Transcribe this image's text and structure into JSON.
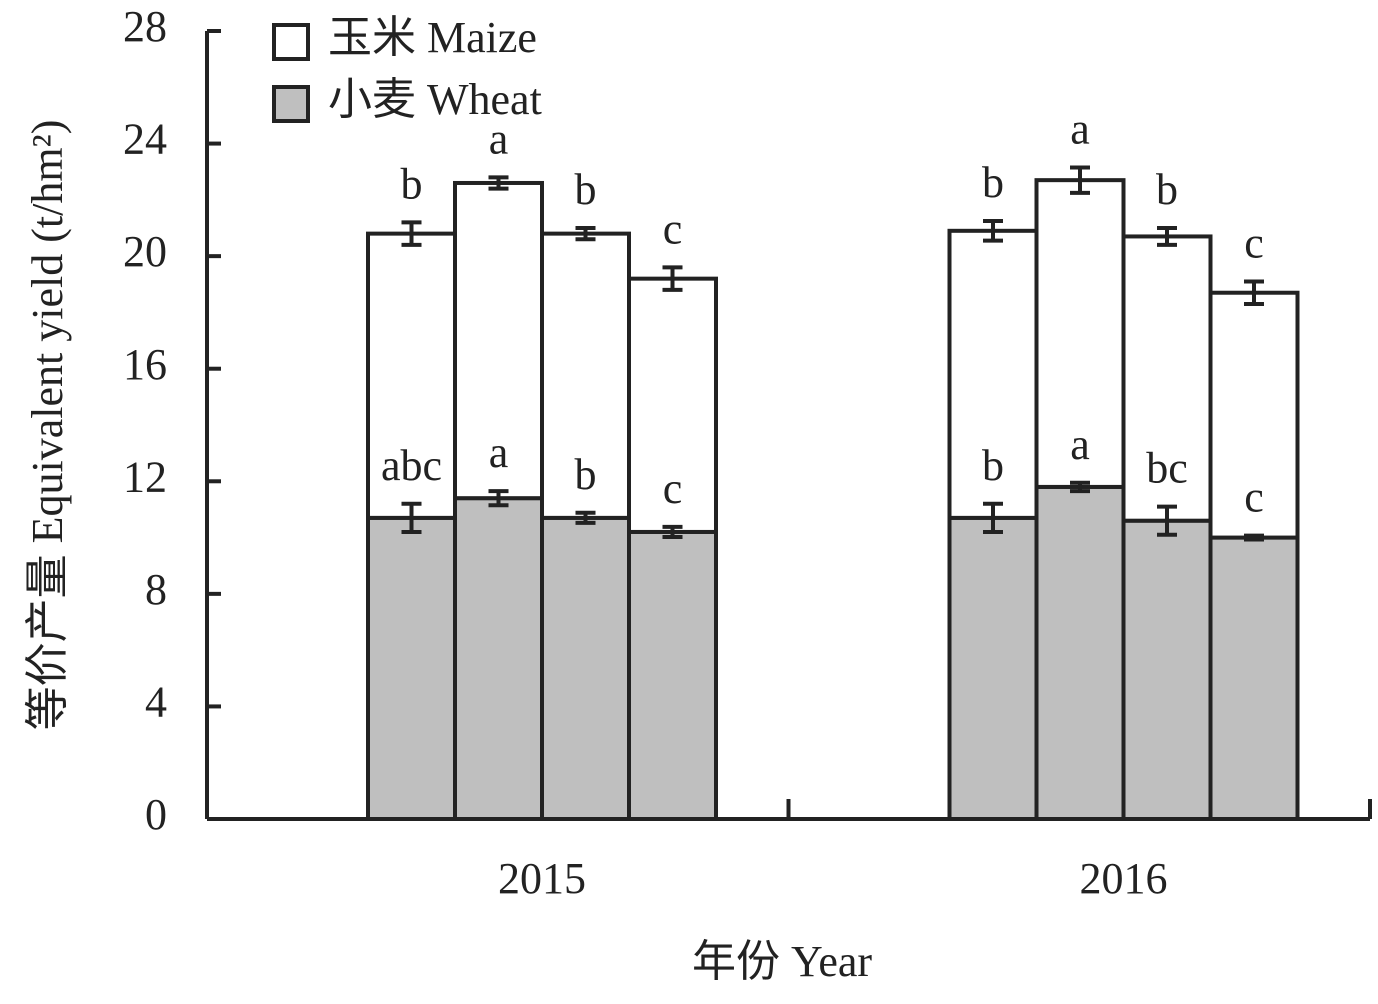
{
  "chart_data": {
    "type": "bar",
    "stacked": true,
    "y_label": "等价产量 Equivalent yield (t/hm²)",
    "x_label": "年份 Year",
    "categories": [
      "2015",
      "2016"
    ],
    "series": [
      {
        "name": "小麦 Wheat",
        "color": "#bfbfbf",
        "values": [
          [
            10.7,
            11.4,
            10.7,
            10.2
          ],
          [
            10.7,
            11.8,
            10.6,
            10.0
          ]
        ],
        "errors": [
          [
            0.5,
            0.25,
            0.18,
            0.18
          ],
          [
            0.5,
            0.15,
            0.5,
            0.07
          ]
        ],
        "labels": [
          [
            "abc",
            "a",
            "b",
            "c"
          ],
          [
            "b",
            "a",
            "bc",
            "c"
          ]
        ]
      },
      {
        "name": "玉米 Maize",
        "color": "#ffffff",
        "values": [
          [
            10.1,
            11.2,
            10.1,
            9.0
          ],
          [
            10.2,
            10.9,
            10.1,
            8.7
          ]
        ],
        "errors": [
          [
            0.4,
            0.2,
            0.2,
            0.4
          ],
          [
            0.35,
            0.45,
            0.3,
            0.4
          ]
        ],
        "labels": [
          [
            "b",
            "a",
            "b",
            "c"
          ],
          [
            "b",
            "a",
            "b",
            "c"
          ]
        ]
      }
    ],
    "ylim": [
      0,
      28
    ],
    "yticks": [
      0,
      4,
      8,
      12,
      16,
      20,
      24,
      28
    ],
    "legend": "top-left"
  }
}
